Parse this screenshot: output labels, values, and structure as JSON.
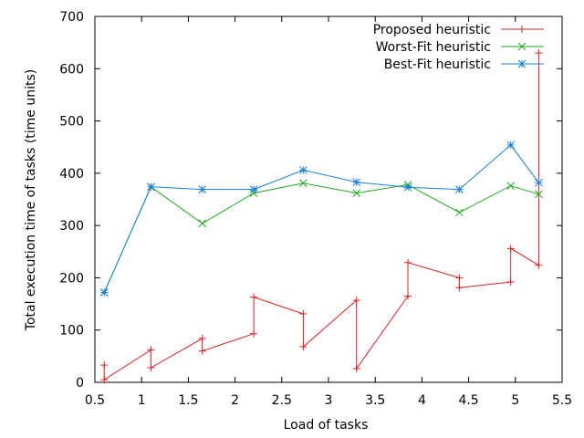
{
  "chart_data": {
    "type": "line",
    "xlabel": "Load of tasks",
    "ylabel": "Total execution time of tasks (time units)",
    "xlim": [
      0.5,
      5.5
    ],
    "ylim": [
      0,
      700
    ],
    "xticks": [
      "0.5",
      "1",
      "1.5",
      "2",
      "2.5",
      "3",
      "3.5",
      "4",
      "4.5",
      "5",
      "5.5"
    ],
    "yticks": [
      "0",
      "100",
      "200",
      "300",
      "400",
      "500",
      "600",
      "700"
    ],
    "legend_position": "top-right",
    "grid": false,
    "series": [
      {
        "name": "Proposed heuristic",
        "color": "#dd2222",
        "marker": "plus",
        "x": [
          0.6,
          0.6,
          1.1,
          1.1,
          1.65,
          1.65,
          2.2,
          2.2,
          2.73,
          2.73,
          3.3,
          3.3,
          3.85,
          3.85,
          4.4,
          4.4,
          4.95,
          4.95,
          5.25,
          5.25
        ],
        "y": [
          33,
          5,
          62,
          28,
          84,
          60,
          93,
          163,
          131,
          68,
          157,
          26,
          165,
          229,
          200,
          181,
          192,
          256,
          224,
          630
        ]
      },
      {
        "name": "Worst-Fit heuristic",
        "color": "#22aa22",
        "marker": "x",
        "x": [
          0.6,
          1.1,
          1.65,
          2.2,
          2.73,
          3.3,
          3.85,
          4.4,
          4.95,
          5.25
        ],
        "y": [
          172,
          374,
          304,
          362,
          381,
          362,
          378,
          325,
          376,
          360
        ]
      },
      {
        "name": "Best-Fit heuristic",
        "color": "#1a7fd4",
        "marker": "star",
        "x": [
          0.6,
          1.1,
          1.65,
          2.2,
          2.73,
          3.3,
          3.85,
          4.4,
          4.95,
          5.25
        ],
        "y": [
          172,
          374,
          369,
          369,
          406,
          383,
          373,
          369,
          454,
          382
        ]
      }
    ]
  }
}
